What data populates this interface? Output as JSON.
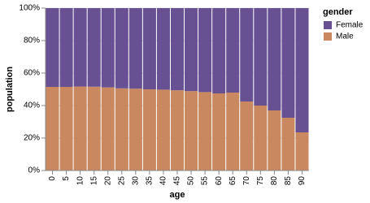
{
  "chart_data": {
    "type": "stacked-bar-normalized",
    "x_label": "age",
    "y_label": "population",
    "legend_title": "gender",
    "categories": [
      "0",
      "5",
      "10",
      "15",
      "20",
      "25",
      "30",
      "35",
      "40",
      "45",
      "50",
      "55",
      "60",
      "65",
      "70",
      "75",
      "80",
      "85",
      "90"
    ],
    "series": [
      {
        "name": "Male",
        "color": "#ca8861",
        "values": [
          51.5,
          51.5,
          51.7,
          51.6,
          51.2,
          50.6,
          50.4,
          50.0,
          49.8,
          49.4,
          48.9,
          48.3,
          47.5,
          48.0,
          42.5,
          40.0,
          37.0,
          32.5,
          23.5
        ]
      },
      {
        "name": "Female",
        "color": "#675193",
        "values": [
          48.5,
          48.5,
          48.3,
          48.4,
          48.8,
          49.4,
          49.6,
          50.0,
          50.2,
          50.6,
          51.1,
          51.7,
          52.5,
          52.0,
          57.5,
          60.0,
          63.0,
          67.5,
          76.5
        ]
      }
    ],
    "ylim": [
      0,
      100
    ],
    "yticks": [
      {
        "value": 0,
        "label": "0%"
      },
      {
        "value": 20,
        "label": "20%"
      },
      {
        "value": 40,
        "label": "40%"
      },
      {
        "value": 60,
        "label": "60%"
      },
      {
        "value": 80,
        "label": "80%"
      },
      {
        "value": 100,
        "label": "100%"
      }
    ],
    "legend_position": "right"
  }
}
